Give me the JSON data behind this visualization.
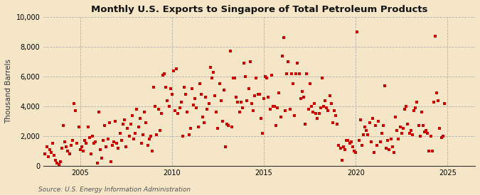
{
  "title": "Monthly U.S. Exports to Singapore of Total Petroleum Products",
  "ylabel": "Thousand Barrels",
  "source": "Source: U.S. Energy Information Administration",
  "bg_color": "#f5e6c8",
  "plot_bg_color": "#f5e6c8",
  "marker_color": "#cc0000",
  "marker_size": 5,
  "ylim": [
    0,
    10000
  ],
  "yticks": [
    0,
    2000,
    4000,
    6000,
    8000,
    10000
  ],
  "ytick_labels": [
    "0",
    "2,000",
    "4,000",
    "6,000",
    "8,000",
    "10,000"
  ],
  "xlim_start": 2003.0,
  "xlim_end": 2026.5,
  "xticks": [
    2005,
    2010,
    2015,
    2020,
    2025
  ],
  "data": [
    [
      2003.08,
      800
    ],
    [
      2003.17,
      1300
    ],
    [
      2003.25,
      600
    ],
    [
      2003.33,
      1100
    ],
    [
      2003.42,
      900
    ],
    [
      2003.5,
      1500
    ],
    [
      2003.58,
      700
    ],
    [
      2003.67,
      400
    ],
    [
      2003.75,
      200
    ],
    [
      2003.83,
      100
    ],
    [
      2003.92,
      300
    ],
    [
      2004.0,
      1200
    ],
    [
      2004.08,
      2700
    ],
    [
      2004.17,
      1600
    ],
    [
      2004.25,
      1300
    ],
    [
      2004.33,
      1000
    ],
    [
      2004.42,
      800
    ],
    [
      2004.5,
      1400
    ],
    [
      2004.58,
      1700
    ],
    [
      2004.67,
      4200
    ],
    [
      2004.75,
      3700
    ],
    [
      2004.83,
      1500
    ],
    [
      2004.92,
      2600
    ],
    [
      2005.0,
      1100
    ],
    [
      2005.08,
      1300
    ],
    [
      2005.17,
      1000
    ],
    [
      2005.25,
      1700
    ],
    [
      2005.33,
      1500
    ],
    [
      2005.42,
      2600
    ],
    [
      2005.5,
      1900
    ],
    [
      2005.58,
      800
    ],
    [
      2005.67,
      2000
    ],
    [
      2005.75,
      1500
    ],
    [
      2005.83,
      1600
    ],
    [
      2005.92,
      200
    ],
    [
      2006.0,
      3600
    ],
    [
      2006.08,
      1100
    ],
    [
      2006.17,
      500
    ],
    [
      2006.25,
      1700
    ],
    [
      2006.33,
      2700
    ],
    [
      2006.42,
      1300
    ],
    [
      2006.5,
      1800
    ],
    [
      2006.58,
      2900
    ],
    [
      2006.67,
      300
    ],
    [
      2006.75,
      1400
    ],
    [
      2006.83,
      1600
    ],
    [
      2006.92,
      3000
    ],
    [
      2007.0,
      1500
    ],
    [
      2007.08,
      1200
    ],
    [
      2007.17,
      2200
    ],
    [
      2007.25,
      1700
    ],
    [
      2007.33,
      2800
    ],
    [
      2007.42,
      3100
    ],
    [
      2007.5,
      1300
    ],
    [
      2007.58,
      2500
    ],
    [
      2007.67,
      2000
    ],
    [
      2007.75,
      2800
    ],
    [
      2007.83,
      3400
    ],
    [
      2007.92,
      1800
    ],
    [
      2008.0,
      2200
    ],
    [
      2008.08,
      3800
    ],
    [
      2008.17,
      2600
    ],
    [
      2008.25,
      3200
    ],
    [
      2008.33,
      1500
    ],
    [
      2008.42,
      2100
    ],
    [
      2008.5,
      3600
    ],
    [
      2008.58,
      2900
    ],
    [
      2008.67,
      1400
    ],
    [
      2008.75,
      1800
    ],
    [
      2008.83,
      2000
    ],
    [
      2008.92,
      1000
    ],
    [
      2009.0,
      5300
    ],
    [
      2009.08,
      4000
    ],
    [
      2009.17,
      2100
    ],
    [
      2009.25,
      3800
    ],
    [
      2009.33,
      2400
    ],
    [
      2009.42,
      3500
    ],
    [
      2009.5,
      6100
    ],
    [
      2009.58,
      6200
    ],
    [
      2009.67,
      5300
    ],
    [
      2009.75,
      4400
    ],
    [
      2009.83,
      4000
    ],
    [
      2009.92,
      5200
    ],
    [
      2010.0,
      4800
    ],
    [
      2010.08,
      6400
    ],
    [
      2010.17,
      3700
    ],
    [
      2010.25,
      6500
    ],
    [
      2010.33,
      3500
    ],
    [
      2010.42,
      3900
    ],
    [
      2010.5,
      4300
    ],
    [
      2010.58,
      2000
    ],
    [
      2010.67,
      5300
    ],
    [
      2010.75,
      4800
    ],
    [
      2010.83,
      3600
    ],
    [
      2010.92,
      2100
    ],
    [
      2011.0,
      2500
    ],
    [
      2011.08,
      5200
    ],
    [
      2011.17,
      4100
    ],
    [
      2011.25,
      4500
    ],
    [
      2011.33,
      3900
    ],
    [
      2011.42,
      2600
    ],
    [
      2011.5,
      5500
    ],
    [
      2011.58,
      4800
    ],
    [
      2011.67,
      3300
    ],
    [
      2011.75,
      2900
    ],
    [
      2011.83,
      4600
    ],
    [
      2011.92,
      3800
    ],
    [
      2012.0,
      4200
    ],
    [
      2012.08,
      6600
    ],
    [
      2012.17,
      5900
    ],
    [
      2012.25,
      6300
    ],
    [
      2012.33,
      4700
    ],
    [
      2012.42,
      3600
    ],
    [
      2012.5,
      2500
    ],
    [
      2012.58,
      5500
    ],
    [
      2012.67,
      4400
    ],
    [
      2012.75,
      3000
    ],
    [
      2012.83,
      5100
    ],
    [
      2012.92,
      1300
    ],
    [
      2013.0,
      2800
    ],
    [
      2013.08,
      2700
    ],
    [
      2013.17,
      7700
    ],
    [
      2013.25,
      2600
    ],
    [
      2013.33,
      5900
    ],
    [
      2013.42,
      5900
    ],
    [
      2013.5,
      4600
    ],
    [
      2013.58,
      4300
    ],
    [
      2013.67,
      3600
    ],
    [
      2013.75,
      4300
    ],
    [
      2013.83,
      3900
    ],
    [
      2013.92,
      6900
    ],
    [
      2014.0,
      6000
    ],
    [
      2014.08,
      4400
    ],
    [
      2014.17,
      5200
    ],
    [
      2014.25,
      7000
    ],
    [
      2014.33,
      4200
    ],
    [
      2014.42,
      3700
    ],
    [
      2014.5,
      4700
    ],
    [
      2014.58,
      5900
    ],
    [
      2014.67,
      4800
    ],
    [
      2014.75,
      4800
    ],
    [
      2014.83,
      3200
    ],
    [
      2014.92,
      2200
    ],
    [
      2015.0,
      4500
    ],
    [
      2015.08,
      6000
    ],
    [
      2015.17,
      5900
    ],
    [
      2015.25,
      4600
    ],
    [
      2015.33,
      3800
    ],
    [
      2015.42,
      6100
    ],
    [
      2015.5,
      4000
    ],
    [
      2015.58,
      4000
    ],
    [
      2015.67,
      2700
    ],
    [
      2015.75,
      3900
    ],
    [
      2015.83,
      4900
    ],
    [
      2015.92,
      3300
    ],
    [
      2016.0,
      7400
    ],
    [
      2016.08,
      8600
    ],
    [
      2016.17,
      3700
    ],
    [
      2016.25,
      6200
    ],
    [
      2016.33,
      7000
    ],
    [
      2016.42,
      3800
    ],
    [
      2016.5,
      6200
    ],
    [
      2016.58,
      5500
    ],
    [
      2016.67,
      3400
    ],
    [
      2016.75,
      6200
    ],
    [
      2016.83,
      6900
    ],
    [
      2016.92,
      6200
    ],
    [
      2017.0,
      4500
    ],
    [
      2017.08,
      5000
    ],
    [
      2017.17,
      4600
    ],
    [
      2017.25,
      2800
    ],
    [
      2017.33,
      6200
    ],
    [
      2017.42,
      3800
    ],
    [
      2017.5,
      5500
    ],
    [
      2017.58,
      4000
    ],
    [
      2017.67,
      3600
    ],
    [
      2017.75,
      4200
    ],
    [
      2017.83,
      3500
    ],
    [
      2017.92,
      3200
    ],
    [
      2018.0,
      3500
    ],
    [
      2018.08,
      3900
    ],
    [
      2018.17,
      5900
    ],
    [
      2018.25,
      4000
    ],
    [
      2018.33,
      4400
    ],
    [
      2018.42,
      3900
    ],
    [
      2018.5,
      3700
    ],
    [
      2018.58,
      4700
    ],
    [
      2018.67,
      4200
    ],
    [
      2018.75,
      2900
    ],
    [
      2018.83,
      3700
    ],
    [
      2018.92,
      3400
    ],
    [
      2019.0,
      2800
    ],
    [
      2019.08,
      1400
    ],
    [
      2019.17,
      1200
    ],
    [
      2019.25,
      400
    ],
    [
      2019.33,
      1300
    ],
    [
      2019.42,
      1100
    ],
    [
      2019.5,
      1700
    ],
    [
      2019.58,
      1700
    ],
    [
      2019.67,
      1500
    ],
    [
      2019.75,
      1600
    ],
    [
      2019.83,
      1300
    ],
    [
      2019.92,
      1000
    ],
    [
      2020.0,
      900
    ],
    [
      2020.08,
      9000
    ],
    [
      2020.17,
      1700
    ],
    [
      2020.25,
      3100
    ],
    [
      2020.33,
      1400
    ],
    [
      2020.42,
      2100
    ],
    [
      2020.5,
      2600
    ],
    [
      2020.58,
      2400
    ],
    [
      2020.67,
      2100
    ],
    [
      2020.75,
      2900
    ],
    [
      2020.83,
      1600
    ],
    [
      2020.92,
      3200
    ],
    [
      2021.0,
      900
    ],
    [
      2021.08,
      2700
    ],
    [
      2021.17,
      1400
    ],
    [
      2021.25,
      3000
    ],
    [
      2021.33,
      1600
    ],
    [
      2021.42,
      2200
    ],
    [
      2021.5,
      2700
    ],
    [
      2021.58,
      5400
    ],
    [
      2021.67,
      1200
    ],
    [
      2021.75,
      1700
    ],
    [
      2021.83,
      1100
    ],
    [
      2021.92,
      1800
    ],
    [
      2022.0,
      1300
    ],
    [
      2022.08,
      900
    ],
    [
      2022.17,
      3300
    ],
    [
      2022.25,
      2400
    ],
    [
      2022.33,
      1800
    ],
    [
      2022.42,
      2600
    ],
    [
      2022.5,
      2200
    ],
    [
      2022.58,
      2500
    ],
    [
      2022.67,
      3800
    ],
    [
      2022.75,
      4000
    ],
    [
      2022.83,
      2800
    ],
    [
      2022.92,
      2200
    ],
    [
      2023.0,
      2400
    ],
    [
      2023.08,
      2100
    ],
    [
      2023.17,
      3700
    ],
    [
      2023.25,
      3900
    ],
    [
      2023.33,
      4300
    ],
    [
      2023.42,
      2700
    ],
    [
      2023.5,
      2000
    ],
    [
      2023.58,
      3600
    ],
    [
      2023.67,
      2700
    ],
    [
      2023.75,
      2300
    ],
    [
      2023.83,
      2400
    ],
    [
      2023.92,
      2200
    ],
    [
      2024.0,
      1000
    ],
    [
      2024.08,
      2000
    ],
    [
      2024.17,
      1000
    ],
    [
      2024.25,
      4300
    ],
    [
      2024.33,
      8700
    ],
    [
      2024.42,
      4900
    ],
    [
      2024.5,
      4400
    ],
    [
      2024.58,
      2500
    ],
    [
      2024.67,
      1900
    ],
    [
      2024.75,
      2000
    ],
    [
      2024.83,
      4200
    ]
  ]
}
